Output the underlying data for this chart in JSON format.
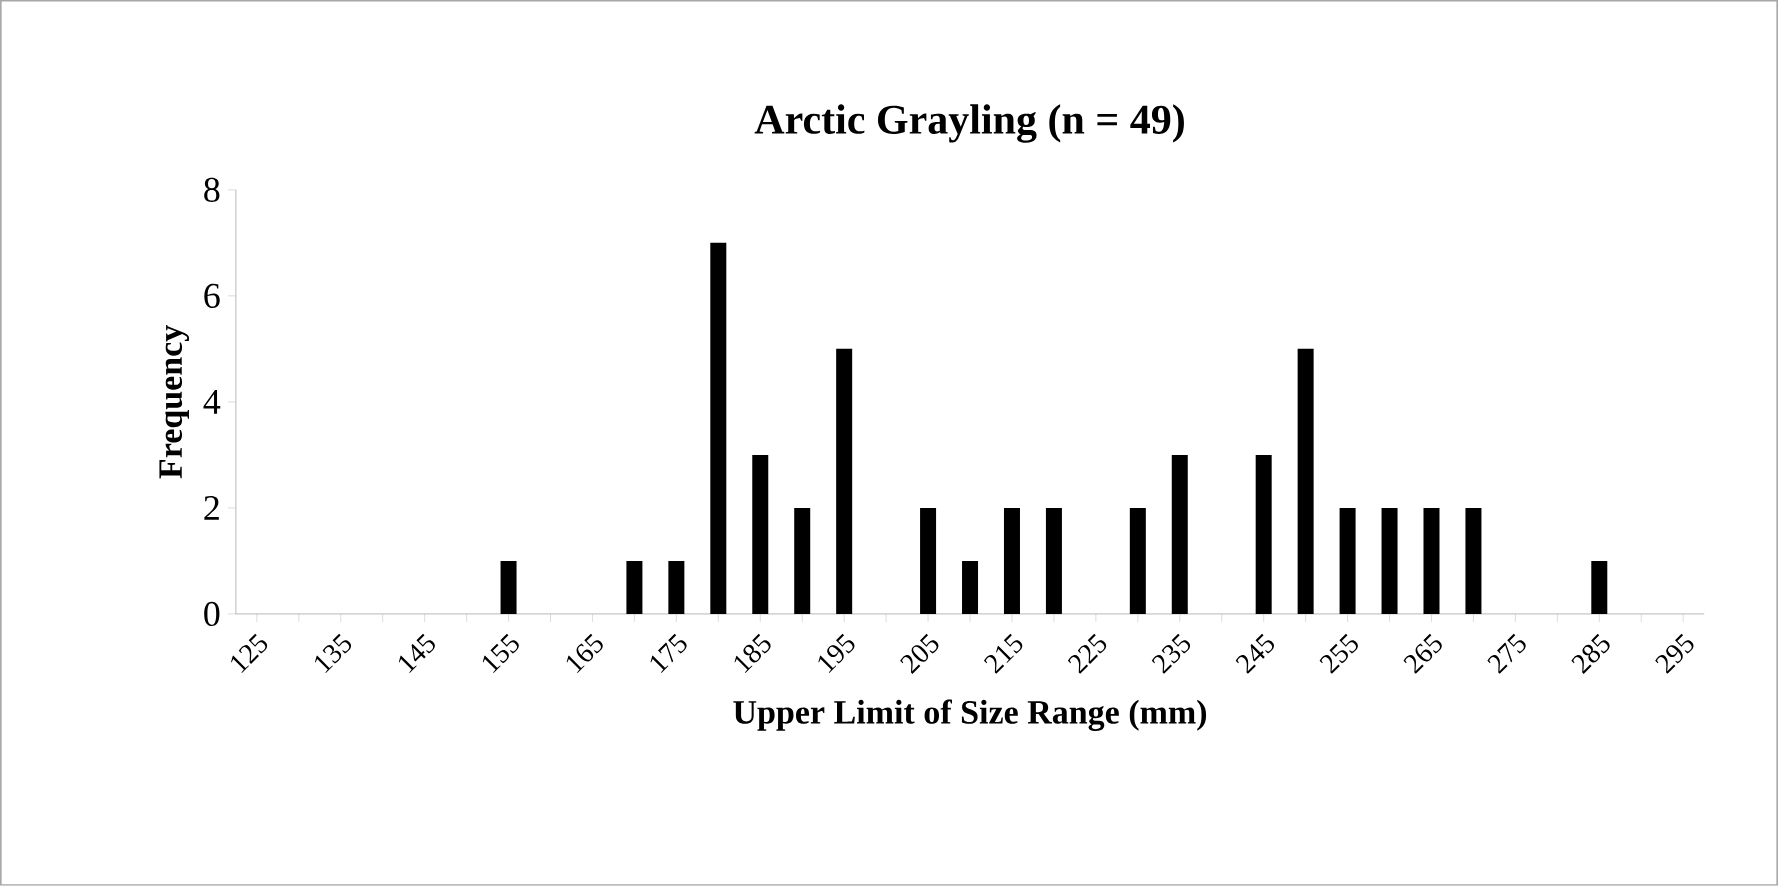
{
  "chart_data": {
    "type": "bar",
    "title": "Arctic Grayling (n = 49)",
    "xlabel": "Upper Limit of Size Range (mm)",
    "ylabel": "Frequency",
    "categories": [
      "125",
      null,
      "135",
      null,
      "145",
      null,
      "155",
      null,
      "165",
      null,
      "175",
      null,
      "185",
      null,
      "195",
      null,
      "205",
      null,
      "215",
      null,
      "225",
      null,
      "235",
      null,
      "245",
      null,
      "255",
      null,
      "265",
      null,
      "275",
      null,
      "285",
      null,
      "295"
    ],
    "values": [
      0,
      0,
      0,
      0,
      0,
      0,
      1,
      0,
      0,
      1,
      1,
      7,
      3,
      2,
      5,
      0,
      2,
      1,
      2,
      2,
      0,
      2,
      3,
      0,
      3,
      5,
      2,
      2,
      2,
      2,
      0,
      0,
      1,
      0,
      0
    ],
    "color": "#000000",
    "ylim": [
      0,
      8
    ],
    "yticks": [
      0,
      2,
      4,
      6,
      8
    ]
  }
}
